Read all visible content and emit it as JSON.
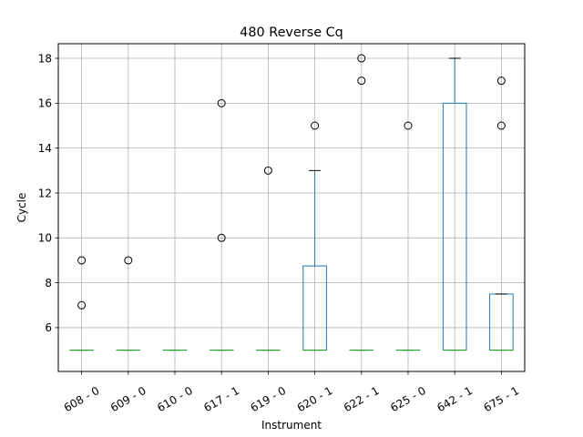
{
  "chart_data": {
    "type": "boxplot",
    "title": "480 Reverse Cq",
    "xlabel": "Instrument",
    "ylabel": "Cycle",
    "ylim": [
      4.05,
      18.65
    ],
    "yticks": [
      6,
      8,
      10,
      12,
      14,
      16,
      18
    ],
    "grid": true,
    "colors": {
      "box": "#1f77b4",
      "median": "#2ca02c",
      "whisker": "#1f77b4",
      "cap": "#000000",
      "grid": "#b0b0b0"
    },
    "categories": [
      "608 - 0",
      "609 - 0",
      "610 - 0",
      "617 - 1",
      "619 - 0",
      "620 - 1",
      "622 - 1",
      "625 - 0",
      "642 - 1",
      "675 - 1"
    ],
    "boxes": [
      {
        "label": "608 - 0",
        "q1": 5,
        "median": 5,
        "q3": 5,
        "whisker_low": 5,
        "whisker_high": 5,
        "outliers": [
          7,
          9
        ]
      },
      {
        "label": "609 - 0",
        "q1": 5,
        "median": 5,
        "q3": 5,
        "whisker_low": 5,
        "whisker_high": 5,
        "outliers": [
          9
        ]
      },
      {
        "label": "610 - 0",
        "q1": 5,
        "median": 5,
        "q3": 5,
        "whisker_low": 5,
        "whisker_high": 5,
        "outliers": []
      },
      {
        "label": "617 - 1",
        "q1": 5,
        "median": 5,
        "q3": 5,
        "whisker_low": 5,
        "whisker_high": 5,
        "outliers": [
          10,
          16
        ]
      },
      {
        "label": "619 - 0",
        "q1": 5,
        "median": 5,
        "q3": 5,
        "whisker_low": 5,
        "whisker_high": 5,
        "outliers": [
          13
        ]
      },
      {
        "label": "620 - 1",
        "q1": 5,
        "median": 5,
        "q3": 8.75,
        "whisker_low": 5,
        "whisker_high": 13,
        "outliers": [
          15
        ]
      },
      {
        "label": "622 - 1",
        "q1": 5,
        "median": 5,
        "q3": 5,
        "whisker_low": 5,
        "whisker_high": 5,
        "outliers": [
          17,
          18
        ]
      },
      {
        "label": "625 - 0",
        "q1": 5,
        "median": 5,
        "q3": 5,
        "whisker_low": 5,
        "whisker_high": 5,
        "outliers": [
          15
        ]
      },
      {
        "label": "642 - 1",
        "q1": 5,
        "median": 5,
        "q3": 16,
        "whisker_low": 5,
        "whisker_high": 18,
        "outliers": []
      },
      {
        "label": "675 - 1",
        "q1": 5,
        "median": 5,
        "q3": 7.5,
        "whisker_low": 5,
        "whisker_high": 7.5,
        "outliers": [
          15,
          17
        ]
      }
    ]
  }
}
